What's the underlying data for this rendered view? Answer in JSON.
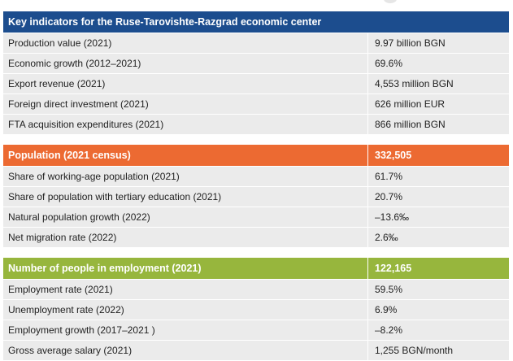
{
  "title": "Key indicators for the Ruse-Tarovishte-Razgrad economic center",
  "colors": {
    "blue": "#1c4d8e",
    "orange": "#ec6a32",
    "green": "#97b63d",
    "row_bg": "#ebebeb"
  },
  "economy": [
    {
      "label": "Production value (2021)",
      "value": "9.97  billion BGN"
    },
    {
      "label": "Economic growth (2012–2021)",
      "value": "69.6%"
    },
    {
      "label": "Export revenue (2021)",
      "value": "4,553 million BGN"
    },
    {
      "label": "Foreign direct investment (2021)",
      "value": "626 million EUR"
    },
    {
      "label": "FTA acquisition expenditures (2021)",
      "value": "866 million BGN"
    }
  ],
  "population": {
    "header_label": "Population (2021 census)",
    "header_value": "332,505",
    "rows": [
      {
        "label": "Share of working-age population (2021)",
        "value": "61.7%"
      },
      {
        "label": "Share of population with tertiary education (2021)",
        "value": "20.7%"
      },
      {
        "label": "Natural population growth (2022)",
        "value": "–13.6‰"
      },
      {
        "label": "Net migration rate (2022)",
        "value": "2.6‰"
      }
    ]
  },
  "employment": {
    "header_label": "Number of people in employment (2021)",
    "header_value": "122,165",
    "rows": [
      {
        "label": "Employment rate (2021)",
        "value": "59.5%"
      },
      {
        "label": "Unemployment rate (2022)",
        "value": "6.9%"
      },
      {
        "label": "Employment growth (2017–2021 )",
        "value": "–8.2%"
      },
      {
        "label": "Gross average salary (2021)",
        "value": "1,255 BGN/month"
      }
    ]
  }
}
